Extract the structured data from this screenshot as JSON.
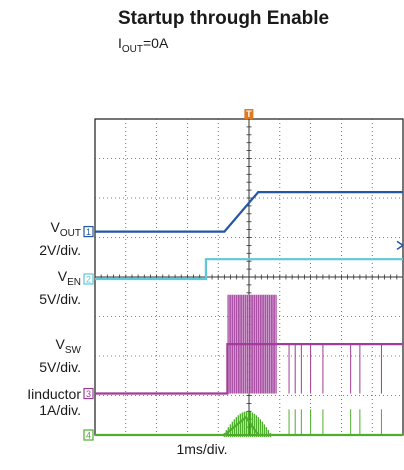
{
  "chart_data": {
    "type": "line",
    "title": "Startup through Enable",
    "subtitle_main": "I",
    "subtitle_sub": "OUT",
    "subtitle_rest": "=0A",
    "xlabel": "1ms/div.",
    "trigger_label": "T",
    "xlim": [
      0,
      10
    ],
    "grid": true,
    "series": [
      {
        "name_main": "V",
        "name_sub": "OUT",
        "scale": "2V/div.",
        "marker": "1",
        "color": "#2456a6",
        "points": [
          [
            0,
            1.15
          ],
          [
            4.2,
            1.15
          ],
          [
            5.3,
            2.15
          ],
          [
            6,
            2.15
          ],
          [
            10,
            2.15
          ]
        ]
      },
      {
        "name_main": "V",
        "name_sub": "EN",
        "scale": "5V/div.",
        "marker": "2",
        "color": "#5ec8d8",
        "points": [
          [
            0,
            -0.05
          ],
          [
            3.6,
            -0.05
          ],
          [
            3.6,
            0.45
          ],
          [
            10,
            0.45
          ]
        ]
      },
      {
        "name_main": "V",
        "name_sub": "SW",
        "scale": "5V/div.",
        "marker": "3",
        "color": "#a03c9a",
        "points": [
          [
            0,
            -2.95
          ],
          [
            4.3,
            -2.95
          ],
          [
            4.3,
            -1.7
          ],
          [
            10,
            -1.7
          ]
        ]
      },
      {
        "name_main": "Iinductor",
        "name_sub": "",
        "scale": "1A/div.",
        "marker": "4",
        "color": "#4fae2e",
        "points": [
          [
            0,
            -4.0
          ],
          [
            4.2,
            -4.0
          ],
          [
            4.9,
            -3.55
          ],
          [
            5.3,
            -4.0
          ],
          [
            10,
            -4.0
          ]
        ]
      }
    ]
  }
}
